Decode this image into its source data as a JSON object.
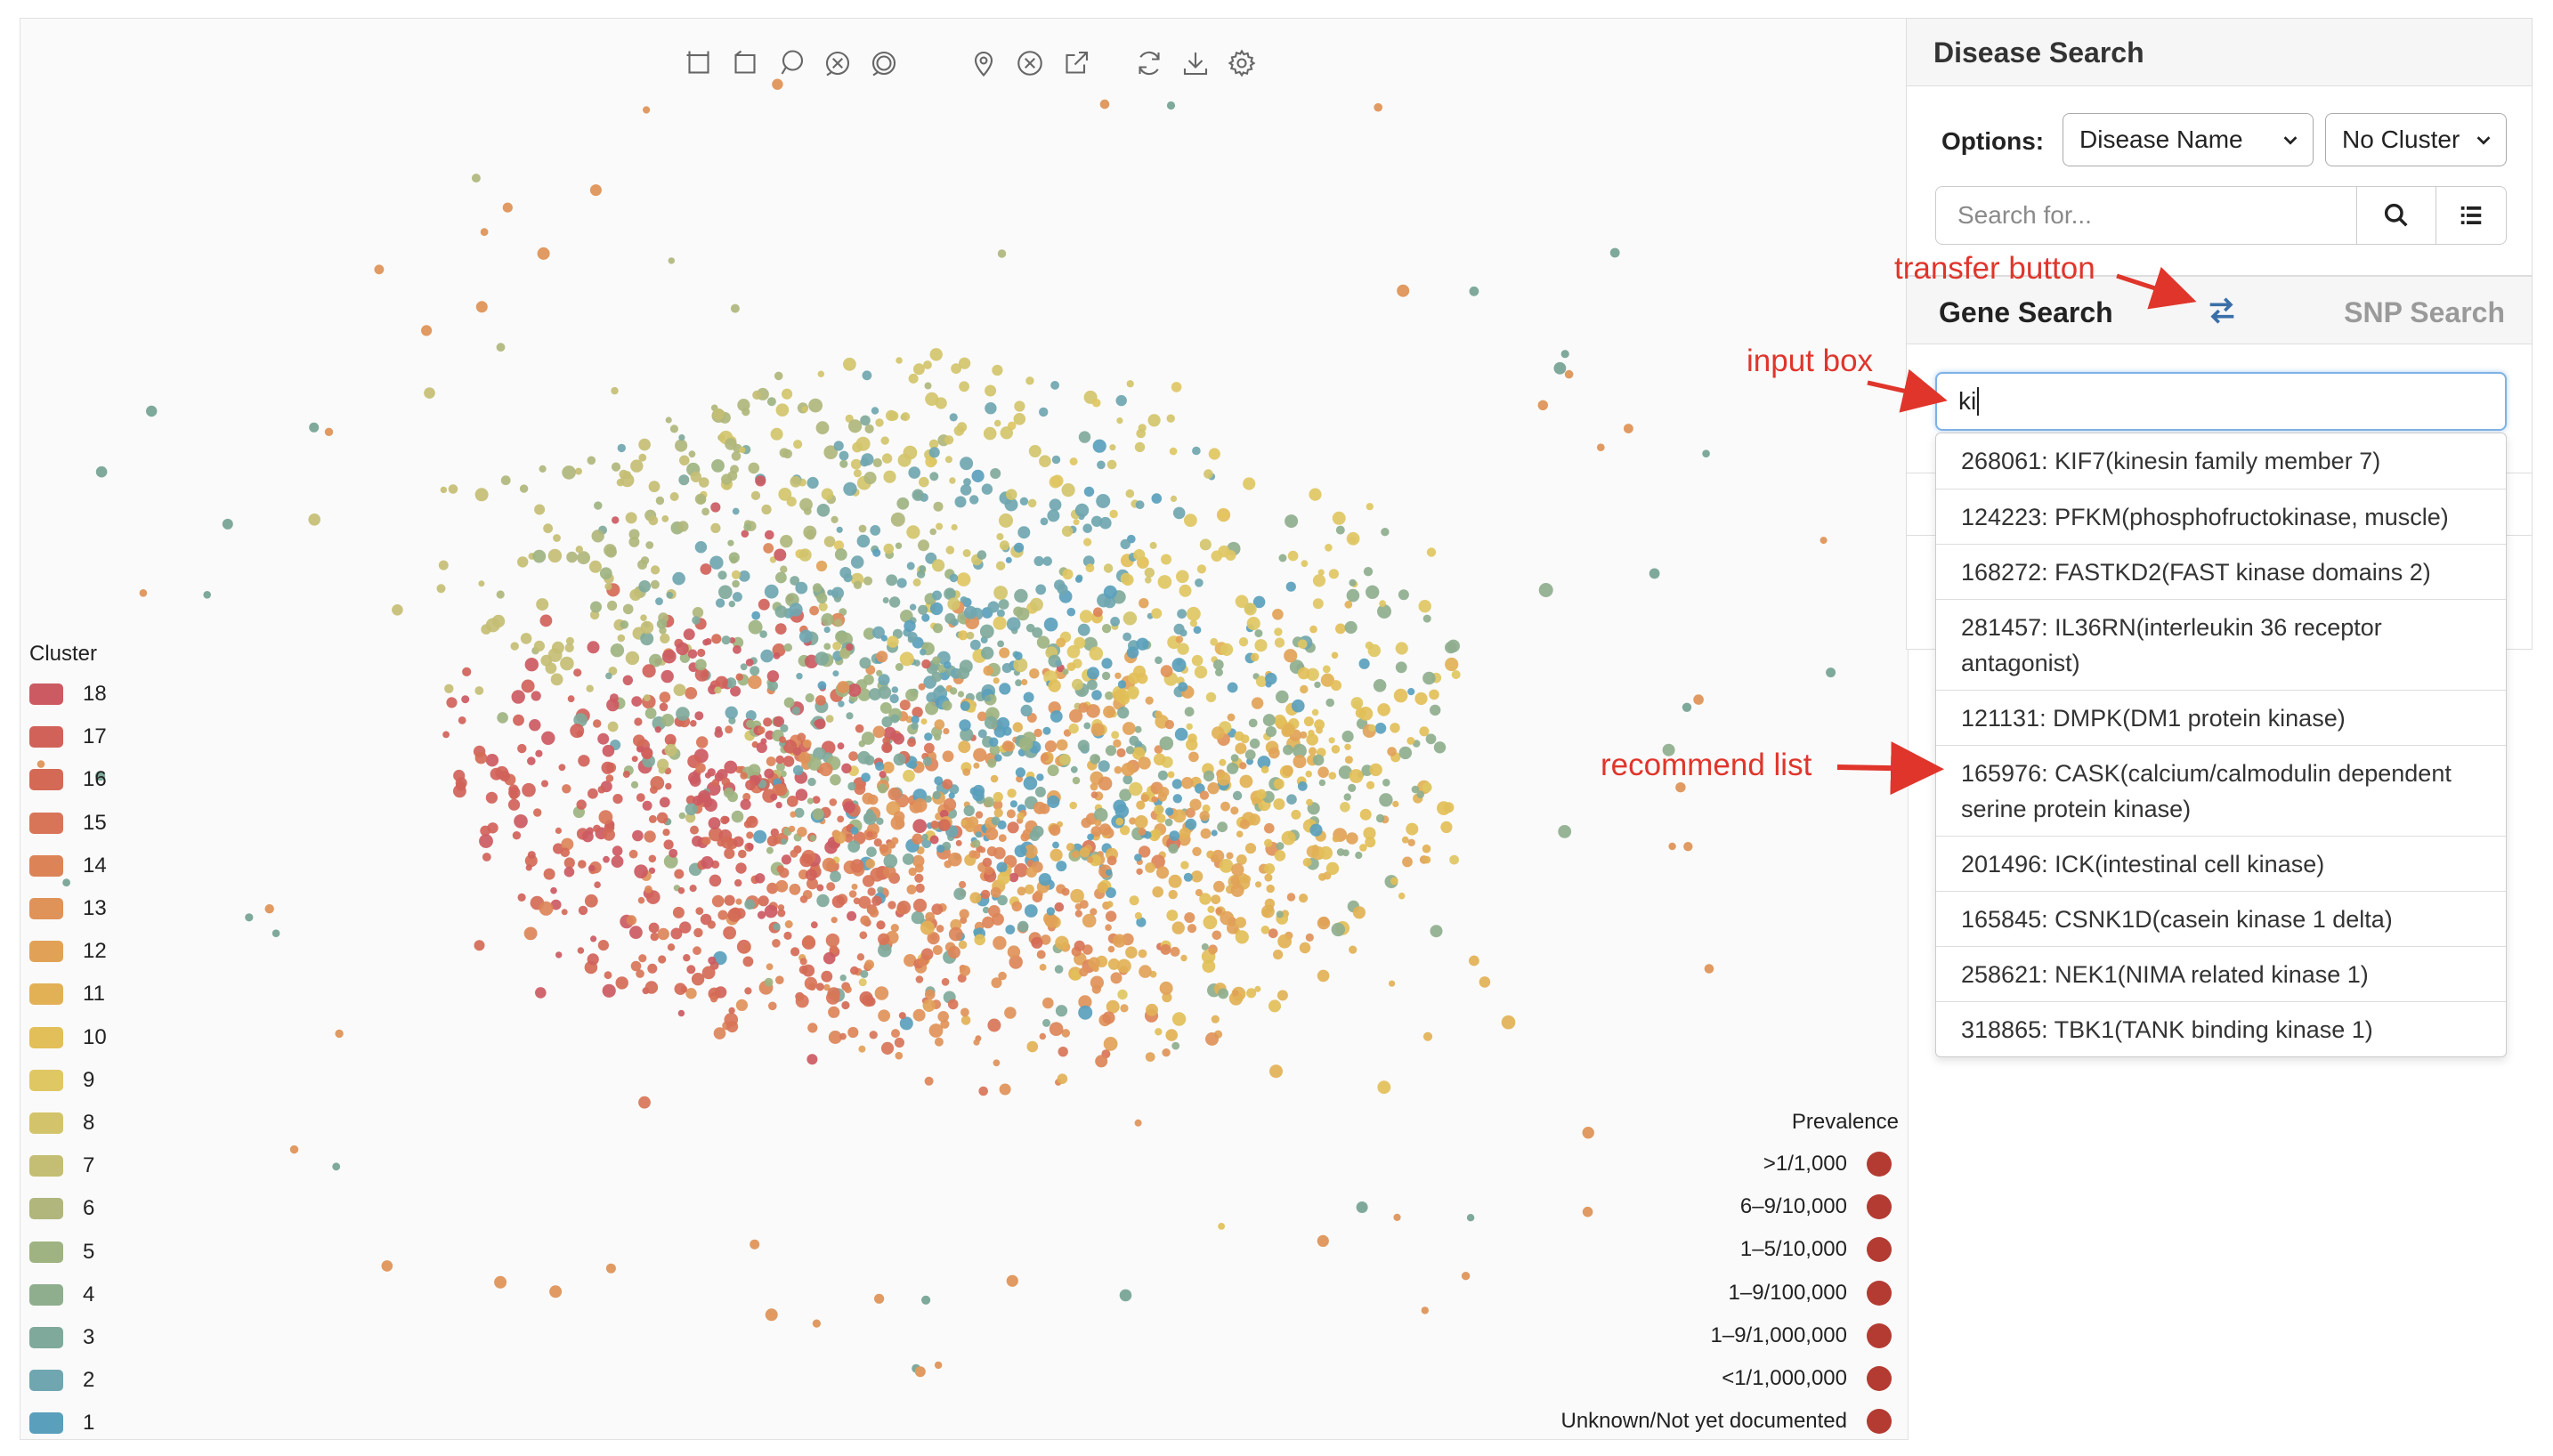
{
  "toolbar": {
    "icons": [
      "rect-select-icon",
      "lasso-select-icon",
      "lasso-loop-icon",
      "clear-selection-icon",
      "inverse-selection-icon",
      "locate-pin-icon",
      "clear-icon",
      "open-external-icon",
      "refresh-icon",
      "download-icon",
      "settings-icon"
    ]
  },
  "legend": {
    "title": "Cluster",
    "items": [
      {
        "label": "18",
        "color": "#cc5a62"
      },
      {
        "label": "17",
        "color": "#d0625a"
      },
      {
        "label": "16",
        "color": "#d46a56"
      },
      {
        "label": "15",
        "color": "#d87558"
      },
      {
        "label": "14",
        "color": "#dc8458"
      },
      {
        "label": "13",
        "color": "#df9359"
      },
      {
        "label": "12",
        "color": "#e1a258"
      },
      {
        "label": "11",
        "color": "#e2b156"
      },
      {
        "label": "10",
        "color": "#e2bf58"
      },
      {
        "label": "9",
        "color": "#dfc763"
      },
      {
        "label": "8",
        "color": "#d3c46b"
      },
      {
        "label": "7",
        "color": "#c4be74"
      },
      {
        "label": "6",
        "color": "#b0b67c"
      },
      {
        "label": "5",
        "color": "#9eb381"
      },
      {
        "label": "4",
        "color": "#8fae8e"
      },
      {
        "label": "3",
        "color": "#7fa99b"
      },
      {
        "label": "2",
        "color": "#6fa6b0"
      },
      {
        "label": "1",
        "color": "#5a9fbc"
      }
    ]
  },
  "prevalence": {
    "title": "Prevalence",
    "color": "#b33b32",
    "items": [
      ">1/1,000",
      "6–9/10,000",
      "1–5/10,000",
      "1–9/100,000",
      "1–9/1,000,000",
      "<1/1,000,000",
      "Unknown/Not yet documented"
    ]
  },
  "disease_search": {
    "title": "Disease Search",
    "options_label": "Options:",
    "select_type": "Disease Name",
    "select_cluster": "No Cluster",
    "search_placeholder": "Search for..."
  },
  "gene_search": {
    "tab_active": "Gene Search",
    "tab_inactive": "SNP Search",
    "input_value": "ki"
  },
  "recommendations": [
    "268061: KIF7(kinesin family member 7)",
    "124223: PFKM(phosphofructokinase, muscle)",
    "168272: FASTKD2(FAST kinase domains 2)",
    "281457: IL36RN(interleukin 36 receptor antagonist)",
    "121131: DMPK(DM1 protein kinase)",
    "165976: CASK(calcium/calmodulin dependent serine protein kinase)",
    "201496: ICK(intestinal cell kinase)",
    "165845: CSNK1D(casein kinase 1 delta)",
    "258621: NEK1(NIMA related kinase 1)",
    "318865: TBK1(TANK binding kinase 1)"
  ],
  "annotations": {
    "transfer": "transfer button",
    "input": "input box",
    "recommend": "recommend list"
  }
}
